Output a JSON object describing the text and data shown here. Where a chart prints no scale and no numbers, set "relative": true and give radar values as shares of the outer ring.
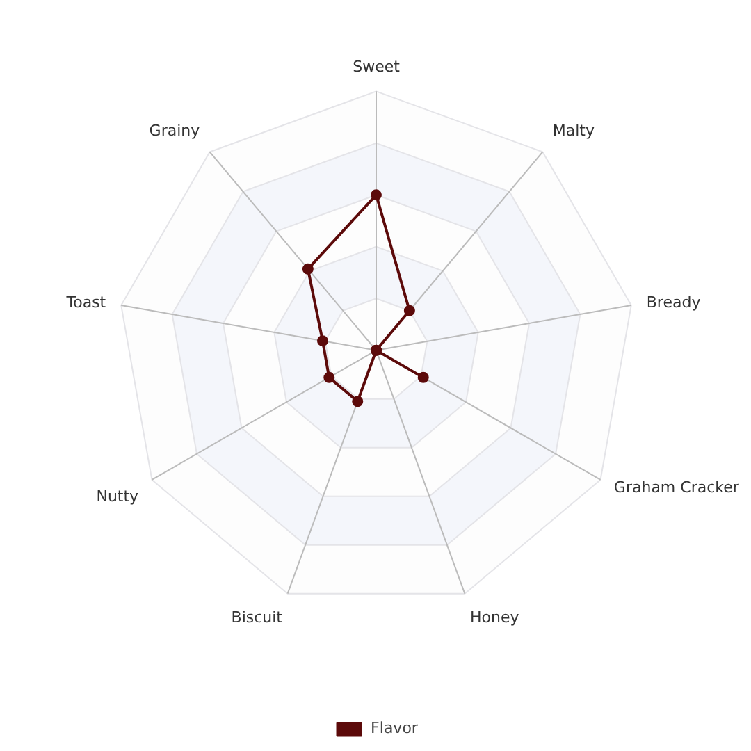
{
  "chart_data": {
    "type": "radar",
    "relative": true,
    "categories": [
      "Sweet",
      "Malty",
      "Bready",
      "Graham Cracker",
      "Honey",
      "Biscuit",
      "Nutty",
      "Toast",
      "Grainy"
    ],
    "series": [
      {
        "name": "Flavor",
        "color": "#5c0a0a",
        "values": [
          0.6,
          0.2,
          0,
          0.21,
          0,
          0.21,
          0.21,
          0.21,
          0.41
        ]
      }
    ],
    "legend": "bottom",
    "marker": "circle",
    "line_style": "solid"
  }
}
